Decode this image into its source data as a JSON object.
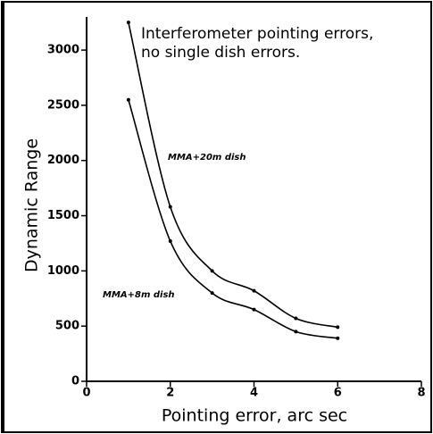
{
  "chart_data": {
    "type": "line",
    "title": [
      "Interferometer pointing errors,",
      "no single dish errors."
    ],
    "xlabel": "Pointing error, arc sec",
    "ylabel": "Dynamic Range",
    "x": [
      1,
      2,
      3,
      4,
      5,
      6
    ],
    "series": [
      {
        "name": "MMA+20m dish",
        "color": "#000000",
        "values": [
          3250,
          1580,
          1000,
          820,
          570,
          490
        ]
      },
      {
        "name": "MMA+8m dish",
        "color": "#000000",
        "values": [
          2550,
          1270,
          800,
          650,
          450,
          390
        ]
      }
    ],
    "xlim": [
      0,
      8
    ],
    "xticks": [
      0,
      2,
      4,
      6,
      8
    ],
    "ylim": [
      0,
      3300
    ],
    "yticks": [
      0,
      500,
      1000,
      1500,
      2000,
      2500,
      3000
    ],
    "grid": false
  }
}
